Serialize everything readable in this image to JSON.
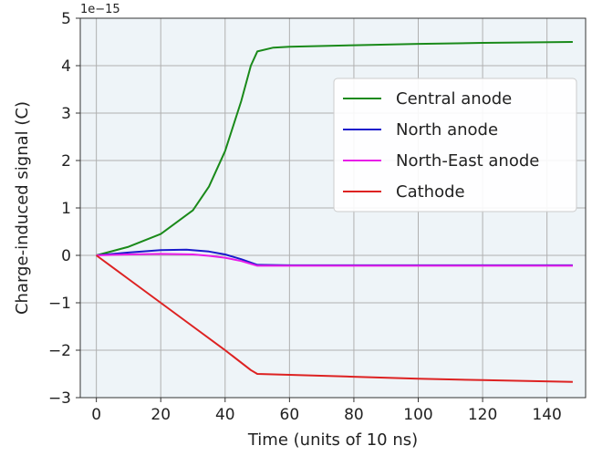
{
  "chart_data": {
    "type": "line",
    "xlabel": "Time (units of 10 ns)",
    "ylabel": "Charge-induced signal (C)",
    "y_offset_label": "1e−15",
    "xlim": [
      -5,
      152
    ],
    "ylim": [
      -3,
      5
    ],
    "xticks": [
      0,
      20,
      40,
      60,
      80,
      100,
      120,
      140
    ],
    "yticks": [
      -3,
      -2,
      -1,
      0,
      1,
      2,
      3,
      4,
      5
    ],
    "xtick_labels": [
      "0",
      "20",
      "40",
      "60",
      "80",
      "100",
      "120",
      "140"
    ],
    "ytick_labels": [
      "−3",
      "−2",
      "−1",
      "0",
      "1",
      "2",
      "3",
      "4",
      "5"
    ],
    "grid": true,
    "legend_position": "upper-right",
    "background_color": "#eef4f8",
    "series": [
      {
        "name": "Central anode",
        "color": "#1a8a1a",
        "x": [
          0,
          10,
          20,
          30,
          35,
          40,
          45,
          48,
          50,
          55,
          60,
          80,
          100,
          120,
          148
        ],
        "y": [
          0,
          0.18,
          0.45,
          0.95,
          1.45,
          2.2,
          3.25,
          4.0,
          4.3,
          4.38,
          4.4,
          4.43,
          4.46,
          4.48,
          4.5
        ]
      },
      {
        "name": "North anode",
        "color": "#1a1acc",
        "x": [
          0,
          10,
          20,
          28,
          35,
          40,
          45,
          50,
          60,
          80,
          100,
          120,
          148
        ],
        "y": [
          0,
          0.06,
          0.11,
          0.12,
          0.08,
          0.02,
          -0.08,
          -0.2,
          -0.21,
          -0.21,
          -0.21,
          -0.21,
          -0.21
        ]
      },
      {
        "name": "North-East anode",
        "color": "#e81de8",
        "x": [
          0,
          10,
          20,
          30,
          35,
          40,
          45,
          50,
          60,
          80,
          100,
          120,
          148
        ],
        "y": [
          0,
          0.02,
          0.03,
          0.02,
          -0.01,
          -0.05,
          -0.12,
          -0.22,
          -0.22,
          -0.22,
          -0.22,
          -0.22,
          -0.22
        ]
      },
      {
        "name": "Cathode",
        "color": "#dd2222",
        "x": [
          0,
          10,
          20,
          30,
          40,
          48,
          50,
          60,
          80,
          100,
          120,
          148
        ],
        "y": [
          0,
          -0.5,
          -1.0,
          -1.5,
          -2.0,
          -2.42,
          -2.5,
          -2.52,
          -2.56,
          -2.6,
          -2.63,
          -2.67
        ]
      }
    ]
  }
}
